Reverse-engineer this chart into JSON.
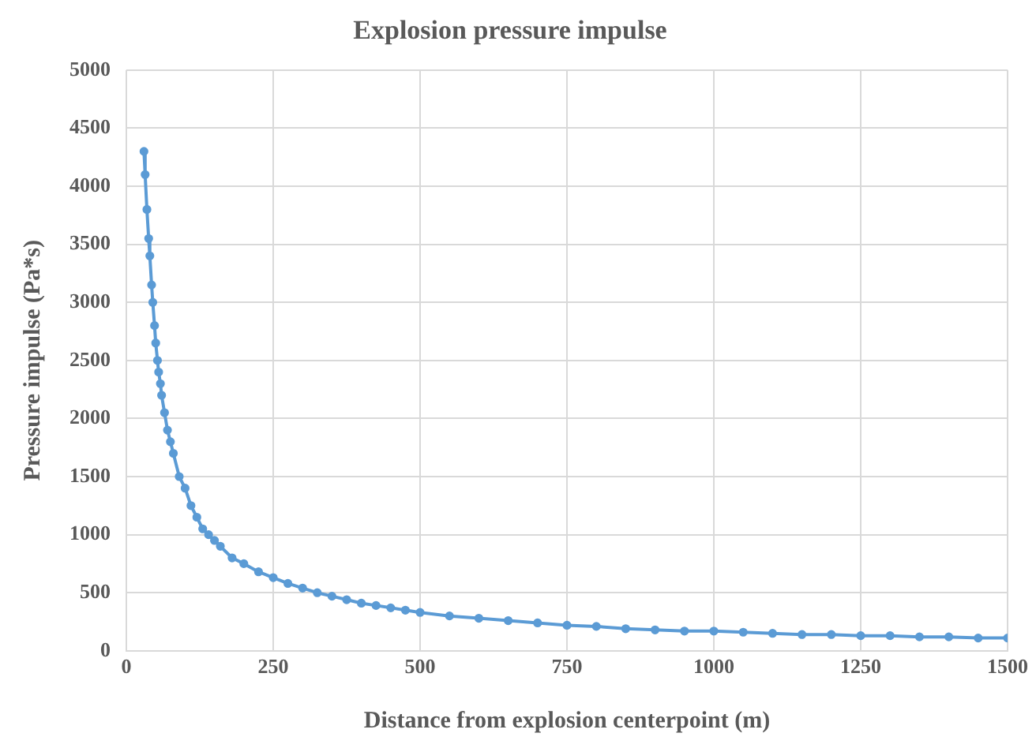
{
  "chart_data": {
    "type": "line",
    "title": "Explosion pressure impulse",
    "xlabel": "Distance from explosion centerpoint (m)",
    "ylabel": "Pressure impulse (Pa*s)",
    "series": [
      {
        "color": "#5b9bd5",
        "x": [
          30,
          32,
          35,
          38,
          40,
          43,
          45,
          48,
          50,
          53,
          55,
          58,
          60,
          65,
          70,
          75,
          80,
          90,
          100,
          110,
          120,
          130,
          140,
          150,
          160,
          180,
          200,
          225,
          250,
          275,
          300,
          325,
          350,
          375,
          400,
          425,
          450,
          475,
          500,
          550,
          600,
          650,
          700,
          750,
          800,
          850,
          900,
          950,
          1000,
          1050,
          1100,
          1150,
          1200,
          1250,
          1300,
          1350,
          1400,
          1450,
          1500
        ],
        "values": [
          4300,
          4100,
          3800,
          3550,
          3400,
          3150,
          3000,
          2800,
          2650,
          2500,
          2400,
          2300,
          2200,
          2050,
          1900,
          1800,
          1700,
          1500,
          1400,
          1250,
          1150,
          1050,
          1000,
          950,
          900,
          800,
          750,
          680,
          630,
          580,
          540,
          500,
          470,
          440,
          410,
          390,
          370,
          350,
          330,
          300,
          280,
          260,
          240,
          220,
          210,
          190,
          180,
          170,
          170,
          160,
          150,
          140,
          140,
          130,
          130,
          120,
          120,
          110,
          110
        ]
      }
    ],
    "xlim": [
      0,
      1500
    ],
    "xticks": [
      0,
      250,
      500,
      750,
      1000,
      1250,
      1500
    ],
    "ylim": [
      0,
      5000
    ],
    "yticks": [
      0,
      500,
      1000,
      1500,
      2000,
      2500,
      3000,
      3500,
      4000,
      4500,
      5000
    ],
    "grid": true,
    "legend": false,
    "marker": "circle",
    "line_style": "solid"
  }
}
